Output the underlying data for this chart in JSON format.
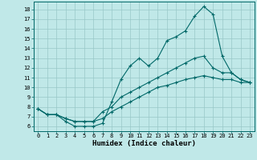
{
  "xlabel": "Humidex (Indice chaleur)",
  "bg_color": "#c0e8e8",
  "grid_color": "#98c8c8",
  "line_color": "#006868",
  "spine_color": "#006868",
  "xlim": [
    -0.5,
    23.5
  ],
  "ylim": [
    5.5,
    18.8
  ],
  "xticks": [
    0,
    1,
    2,
    3,
    4,
    5,
    6,
    7,
    8,
    9,
    10,
    11,
    12,
    13,
    14,
    15,
    16,
    17,
    18,
    19,
    20,
    21,
    22,
    23
  ],
  "yticks": [
    6,
    7,
    8,
    9,
    10,
    11,
    12,
    13,
    14,
    15,
    16,
    17,
    18
  ],
  "line1_x": [
    0,
    1,
    2,
    3,
    4,
    5,
    6,
    7,
    8,
    9,
    10,
    11,
    12,
    13,
    14,
    15,
    16,
    17,
    18,
    19,
    20,
    21,
    22,
    23
  ],
  "line1_y": [
    7.8,
    7.2,
    7.2,
    6.5,
    6.0,
    6.0,
    6.0,
    6.3,
    8.5,
    10.8,
    12.2,
    13.0,
    12.2,
    13.0,
    14.8,
    15.2,
    15.8,
    17.3,
    18.3,
    17.5,
    13.2,
    11.5,
    10.8,
    10.5
  ],
  "line2_x": [
    0,
    1,
    2,
    3,
    4,
    5,
    6,
    7,
    8,
    9,
    10,
    11,
    12,
    13,
    14,
    15,
    16,
    17,
    18,
    19,
    20,
    21,
    22,
    23
  ],
  "line2_y": [
    7.8,
    7.2,
    7.2,
    6.8,
    6.5,
    6.5,
    6.5,
    7.5,
    8.0,
    9.0,
    9.5,
    10.0,
    10.5,
    11.0,
    11.5,
    12.0,
    12.5,
    13.0,
    13.2,
    12.0,
    11.5,
    11.5,
    10.8,
    10.5
  ],
  "line3_x": [
    0,
    1,
    2,
    3,
    4,
    5,
    6,
    7,
    8,
    9,
    10,
    11,
    12,
    13,
    14,
    15,
    16,
    17,
    18,
    19,
    20,
    21,
    22,
    23
  ],
  "line3_y": [
    7.8,
    7.2,
    7.2,
    6.8,
    6.5,
    6.5,
    6.5,
    6.8,
    7.5,
    8.0,
    8.5,
    9.0,
    9.5,
    10.0,
    10.2,
    10.5,
    10.8,
    11.0,
    11.2,
    11.0,
    10.8,
    10.8,
    10.5,
    10.5
  ],
  "xlabel_fontsize": 6.5,
  "tick_fontsize": 5.0,
  "xlabel_fontweight": "bold"
}
